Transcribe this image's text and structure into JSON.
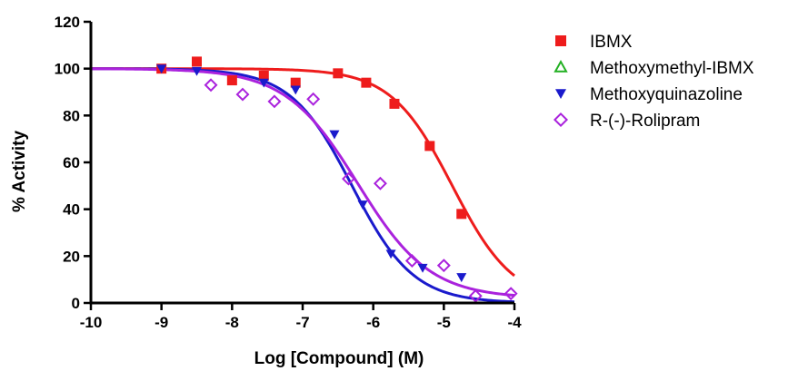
{
  "chart_data": {
    "type": "scatter",
    "title": "",
    "xlabel": "Log [Compound] (M)",
    "ylabel": "% Activity",
    "xlim": [
      -10,
      -4
    ],
    "ylim": [
      0,
      120
    ],
    "xticks": [
      -10,
      -9,
      -8,
      -7,
      -6,
      -5,
      -4
    ],
    "yticks": [
      0,
      20,
      40,
      60,
      80,
      100,
      120
    ],
    "grid": false,
    "legend_position": "right",
    "series": [
      {
        "name": "IBMX",
        "marker": "square",
        "color": "#ee1c1c",
        "x": [
          -9.0,
          -8.5,
          -8.0,
          -7.55,
          -7.1,
          -6.5,
          -6.1,
          -5.7,
          -5.2,
          -4.75
        ],
        "y": [
          100,
          103,
          95,
          97,
          94,
          98,
          94,
          85,
          67,
          38
        ],
        "fit": {
          "top": 100,
          "bottom": 0,
          "log_ic50": -4.88,
          "hill": 1.0
        }
      },
      {
        "name": "Methoxymethyl-IBMX",
        "marker": "triangle-up-open",
        "color": "#22b022",
        "x": [],
        "y": []
      },
      {
        "name": "Methoxyquinazoline",
        "marker": "triangle-down",
        "color": "#1a1acc",
        "x": [
          -9.0,
          -8.5,
          -7.55,
          -7.1,
          -6.55,
          -6.15,
          -5.75,
          -5.3,
          -4.75
        ],
        "y": [
          100,
          99,
          94,
          91,
          72,
          42,
          21,
          15,
          11
        ],
        "fit": {
          "top": 100,
          "bottom": 0,
          "log_ic50": -6.3,
          "hill": 1.0
        }
      },
      {
        "name": "R-(-)-Rolipram",
        "marker": "diamond-open",
        "color": "#aa22dd",
        "x": [
          -8.3,
          -7.85,
          -7.4,
          -6.85,
          -6.35,
          -5.9,
          -5.45,
          -5.0,
          -4.55,
          -4.05
        ],
        "y": [
          93,
          89,
          86,
          87,
          53,
          51,
          18,
          16,
          3,
          4
        ],
        "fit": {
          "top": 100,
          "bottom": 2,
          "log_ic50": -6.22,
          "hill": 0.85
        }
      }
    ]
  }
}
